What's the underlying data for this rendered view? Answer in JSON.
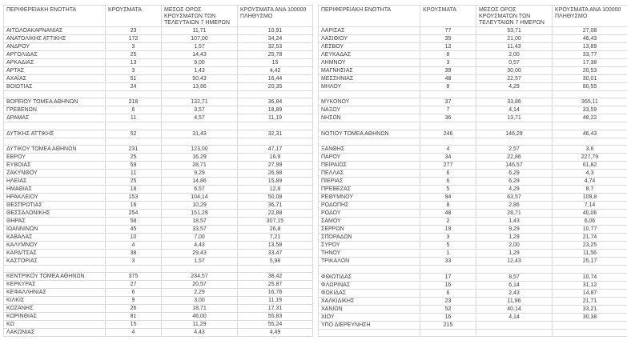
{
  "colors": {
    "text": "#3d3d3d",
    "gridline": "#d9d9d9",
    "background": "#ffffff"
  },
  "headers": {
    "region": "ΠΕΡΙΦΕΡΕΙΑΚΗ ΕΝΟΤΗΤΑ",
    "cases": "ΚΡΟΥΣΜΑΤΑ",
    "avg": "ΜΕΣΟΣ ΟΡΟΣ ΚΡΟΥΣΜΑΤΩΝ ΤΩΝ ΤΕΛΕΥΤΑΙΩΝ 7 ΗΜΕΡΩΝ",
    "per100k": "ΚΡΟΥΣΜΑΤΑ ΑΝΑ 100000 ΠΛΗΘΥΣΜΟ"
  },
  "tables": [
    {
      "side": "left",
      "rows": [
        {
          "region": "ΑΙΤΩΛΟΑΚΑΡΝΑΝΙΑΣ",
          "cases": "23",
          "avg": "11,71",
          "per100k": "10,91"
        },
        {
          "region": "ΑΝΑΤΟΛΙΚΗΣ ΑΤΤΙΚΗΣ",
          "cases": "172",
          "avg": "107,00",
          "per100k": "34,24"
        },
        {
          "region": "ΑΝΔΡΟΥ",
          "cases": "3",
          "avg": "1,57",
          "per100k": "32,53"
        },
        {
          "region": "ΑΡΓΟΛΙΔΑΣ",
          "cases": "25",
          "avg": "14,43",
          "per100k": "25,78"
        },
        {
          "region": "ΑΡΚΑΔΙΑΣ",
          "cases": "13",
          "avg": "9,00",
          "per100k": "15"
        },
        {
          "region": "ΑΡΤΑΣ",
          "cases": "3",
          "avg": "1,43",
          "per100k": "4,42"
        },
        {
          "region": "ΑΧΑΪΑΣ",
          "cases": "51",
          "avg": "50,43",
          "per100k": "16,44"
        },
        {
          "region": "ΒΟΙΩΤΙΑΣ",
          "cases": "24",
          "avg": "13,86",
          "per100k": "20,35"
        },
        null,
        {
          "region": "ΒΟΡΕΙΟΥ ΤΟΜΕΑ ΑΘΗΝΩΝ",
          "cases": "218",
          "avg": "132,71",
          "per100k": "36,84"
        },
        {
          "region": "ΓΡΕΒΕΝΩΝ",
          "cases": "6",
          "avg": "3,57",
          "per100k": "18,89"
        },
        {
          "region": "ΔΡΑΜΑΣ",
          "cases": "11",
          "avg": "4,57",
          "per100k": "11,19"
        },
        null,
        {
          "region": "ΔΥΤΙΚΗΣ ΑΤΤΙΚΗΣ",
          "cases": "52",
          "avg": "31,43",
          "per100k": "32,31"
        },
        null,
        {
          "region": "ΔΥΤΙΚΟΥ ΤΟΜΕΑ ΑΘΗΝΩΝ",
          "cases": "231",
          "avg": "123,00",
          "per100k": "47,17"
        },
        {
          "region": "ΕΒΡΟΥ",
          "cases": "25",
          "avg": "16,29",
          "per100k": "16,9"
        },
        {
          "region": "ΕΥΒΟΙΑΣ",
          "cases": "59",
          "avg": "28,71",
          "per100k": "27,99"
        },
        {
          "region": "ΖΑΚΥΝΘΟΥ",
          "cases": "11",
          "avg": "9,29",
          "per100k": "26,98"
        },
        {
          "region": "ΗΛΕΙΑΣ",
          "cases": "25",
          "avg": "14,86",
          "per100k": "15,89"
        },
        {
          "region": "ΗΜΑΘΙΑΣ",
          "cases": "18",
          "avg": "6,57",
          "per100k": "12,8"
        },
        {
          "region": "ΗΡΑΚΛΕΙΟΥ",
          "cases": "153",
          "avg": "104,14",
          "per100k": "50,08"
        },
        {
          "region": "ΘΕΣΠΡΩΤΙΑΣ",
          "cases": "16",
          "avg": "10,29",
          "per100k": "36,71"
        },
        {
          "region": "ΘΕΣΣΑΛΟΝΙΚΗΣ",
          "cases": "254",
          "avg": "151,29",
          "per100k": "22,88"
        },
        {
          "region": "ΘΗΡΑΣ",
          "cases": "58",
          "avg": "18,57",
          "per100k": "307,15"
        },
        {
          "region": "ΙΩΑΝΝΙΝΩΝ",
          "cases": "45",
          "avg": "33,57",
          "per100k": "26,8"
        },
        {
          "region": "ΚΑΒΑΛΑΣ",
          "cases": "10",
          "avg": "7,00",
          "per100k": "7,21"
        },
        {
          "region": "ΚΑΛΥΜΝΟΥ",
          "cases": "4",
          "avg": "4,43",
          "per100k": "13,58"
        },
        {
          "region": "ΚΑΡΔΙΤΣΑΣ",
          "cases": "38",
          "avg": "29,43",
          "per100k": "33,47"
        },
        {
          "region": "ΚΑΣΤΟΡΙΑΣ",
          "cases": "3",
          "avg": "1,57",
          "per100k": "5,98"
        },
        null,
        {
          "region": "ΚΕΝΤΡΙΚΟΥ ΤΟΜΕΑ ΑΘΗΝΩΝ",
          "cases": "375",
          "avg": "234,57",
          "per100k": "38,42"
        },
        {
          "region": "ΚΕΡΚΥΡΑΣ",
          "cases": "27",
          "avg": "20,57",
          "per100k": "25,87"
        },
        {
          "region": "ΚΕΦΑΛΛΗΝΙΑΣ",
          "cases": "6",
          "avg": "2,29",
          "per100k": "16,76"
        },
        {
          "region": "ΚΙΛΚΙΣ",
          "cases": "9",
          "avg": "3,00",
          "per100k": "11,19"
        },
        {
          "region": "ΚΟΖΑΝΗΣ",
          "cases": "26",
          "avg": "18,71",
          "per100k": "17,31"
        },
        {
          "region": "ΚΟΡΙΝΘΙΑΣ",
          "cases": "81",
          "avg": "46,00",
          "per100k": "55,83"
        },
        {
          "region": "ΚΩ",
          "cases": "15",
          "avg": "11,29",
          "per100k": "55,24"
        },
        {
          "region": "ΛΑΚΩΝΙΑΣ",
          "cases": "4",
          "avg": "4,43",
          "per100k": "4,49"
        }
      ]
    },
    {
      "side": "right",
      "rows": [
        {
          "region": "ΛΑΡΙΣΑΣ",
          "cases": "77",
          "avg": "53,71",
          "per100k": "27,08"
        },
        {
          "region": "ΛΑΣΙΘΙΟΥ",
          "cases": "35",
          "avg": "21,00",
          "per100k": "46,43"
        },
        {
          "region": "ΛΕΣΒΟΥ",
          "cases": "12",
          "avg": "11,43",
          "per100k": "13,89"
        },
        {
          "region": "ΛΕΥΚΑΔΑΣ",
          "cases": "8",
          "avg": "2,00",
          "per100k": "33,77"
        },
        {
          "region": "ΛΗΜΝΟΥ",
          "cases": "3",
          "avg": "0,57",
          "per100k": "17,38"
        },
        {
          "region": "ΜΑΓΝΗΣΙΑΣ",
          "cases": "39",
          "avg": "30,00",
          "per100k": "20,53"
        },
        {
          "region": "ΜΕΣΣΗΝΙΑΣ",
          "cases": "48",
          "avg": "22,57",
          "per100k": "30,01"
        },
        {
          "region": "ΜΗΛΟΥ",
          "cases": "8",
          "avg": "4,29",
          "per100k": "80,55"
        },
        null,
        {
          "region": "ΜΥΚΟΝΟΥ",
          "cases": "37",
          "avg": "33,86",
          "per100k": "365,11"
        },
        {
          "region": "ΝΑΞΟΥ",
          "cases": "7",
          "avg": "4,14",
          "per100k": "33,59"
        },
        {
          "region": "ΝΗΣΩΝ",
          "cases": "36",
          "avg": "13,71",
          "per100k": "48,22"
        },
        null,
        {
          "region": "ΝΟΤΙΟΥ ΤΟΜΕΑ ΑΘΗΝΩΝ",
          "cases": "246",
          "avg": "146,29",
          "per100k": "46,43"
        },
        null,
        {
          "region": "ΞΑΝΘΗΣ",
          "cases": "4",
          "avg": "2,57",
          "per100k": "3,6"
        },
        {
          "region": "ΠΑΡΟΥ",
          "cases": "34",
          "avg": "22,86",
          "per100k": "227,79"
        },
        {
          "region": "ΠΕΙΡΑΙΩΣ",
          "cases": "277",
          "avg": "146,57",
          "per100k": "61,82"
        },
        {
          "region": "ΠΕΛΛΑΣ",
          "cases": "6",
          "avg": "6,29",
          "per100k": "4,3"
        },
        {
          "region": "ΠΙΕΡΙΑΣ",
          "cases": "6",
          "avg": "6,29",
          "per100k": "4,74"
        },
        {
          "region": "ΠΡΕΒΕΖΑΣ",
          "cases": "5",
          "avg": "4,29",
          "per100k": "8,7"
        },
        {
          "region": "ΡΕΘΥΜΝΟΥ",
          "cases": "94",
          "avg": "63,57",
          "per100k": "109,8"
        },
        {
          "region": "ΡΟΔΟΠΗΣ",
          "cases": "8",
          "avg": "2,86",
          "per100k": "7,14"
        },
        {
          "region": "ΡΟΔΟΥ",
          "cases": "48",
          "avg": "28,71",
          "per100k": "40,06"
        },
        {
          "region": "ΣΑΜΟΥ",
          "cases": "2",
          "avg": "1,43",
          "per100k": "6,06"
        },
        {
          "region": "ΣΕΡΡΩΝ",
          "cases": "19",
          "avg": "9,29",
          "per100k": "10,77"
        },
        {
          "region": "ΣΠΟΡΑΔΩΝ",
          "cases": "3",
          "avg": "1,29",
          "per100k": "21,74"
        },
        {
          "region": "ΣΥΡΟΥ",
          "cases": "5",
          "avg": "2,00",
          "per100k": "23,25"
        },
        {
          "region": "ΤΗΝΟΥ",
          "cases": "1",
          "avg": "1,29",
          "per100k": "11,56"
        },
        {
          "region": "ΤΡΙΚΑΛΩΝ",
          "cases": "33",
          "avg": "12,43",
          "per100k": "25,17"
        },
        null,
        {
          "region": "ΦΘΙΩΤΙΔΑΣ",
          "cases": "17",
          "avg": "8,57",
          "per100k": "10,74"
        },
        {
          "region": "ΦΛΩΡΙΝΑΣ",
          "cases": "16",
          "avg": "6,14",
          "per100k": "31,12"
        },
        {
          "region": "ΦΩΚΙΔΑΣ",
          "cases": "6",
          "avg": "2,43",
          "per100k": "14,87"
        },
        {
          "region": "ΧΑΛΚΙΔΙΚΗΣ",
          "cases": "23",
          "avg": "11,86",
          "per100k": "21,71"
        },
        {
          "region": "ΧΑΝΙΩΝ",
          "cases": "52",
          "avg": "40,14",
          "per100k": "33,21"
        },
        {
          "region": "ΧΙΟΥ",
          "cases": "16",
          "avg": "4,14",
          "per100k": "30,38"
        },
        {
          "region": "ΥΠΟ ΔΙΕΡΕΥΝΗΣΗ",
          "cases": "215",
          "avg": "",
          "per100k": ""
        },
        null
      ]
    }
  ]
}
